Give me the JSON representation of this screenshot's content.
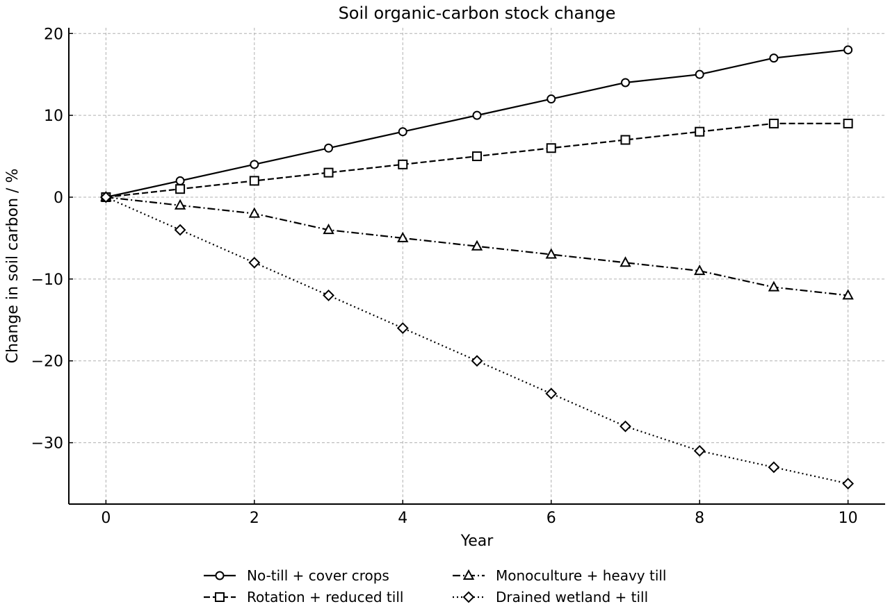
{
  "chart_data": {
    "type": "line",
    "title": "Soil organic-carbon stock change",
    "xlabel": "Year",
    "ylabel": "Change in soil carbon / %",
    "x": [
      0,
      1,
      2,
      3,
      4,
      5,
      6,
      7,
      8,
      9,
      10
    ],
    "xlim": [
      -0.5,
      10.5
    ],
    "ylim": [
      -37.5,
      20.7
    ],
    "xticks": [
      0,
      2,
      4,
      6,
      8,
      10
    ],
    "xtick_labels": [
      "0",
      "2",
      "4",
      "6",
      "8",
      "10"
    ],
    "yticks": [
      20,
      10,
      0,
      -10,
      -20,
      -30
    ],
    "ytick_labels": [
      "20",
      "10",
      "0",
      "−10",
      "−20",
      "−30"
    ],
    "grid": true,
    "legend_position": "bottom-center",
    "series": [
      {
        "name": "No-till + cover crops",
        "marker": "circle",
        "dash": "solid",
        "values": [
          0,
          2,
          4,
          6,
          8,
          10,
          12,
          14,
          15,
          17,
          18
        ]
      },
      {
        "name": "Rotation + reduced till",
        "marker": "square",
        "dash": "dashed",
        "values": [
          0,
          1,
          2,
          3,
          4,
          5,
          6,
          7,
          8,
          9,
          9
        ]
      },
      {
        "name": "Monoculture + heavy till",
        "marker": "triangle",
        "dash": "dashdot",
        "values": [
          0,
          -1,
          -2,
          -4,
          -5,
          -6,
          -7,
          -8,
          -9,
          -11,
          -12
        ]
      },
      {
        "name": "Drained wetland + till",
        "marker": "diamond",
        "dash": "dotted",
        "values": [
          0,
          -4,
          -8,
          -12,
          -16,
          -20,
          -24,
          -28,
          -31,
          -33,
          -35
        ]
      }
    ]
  }
}
